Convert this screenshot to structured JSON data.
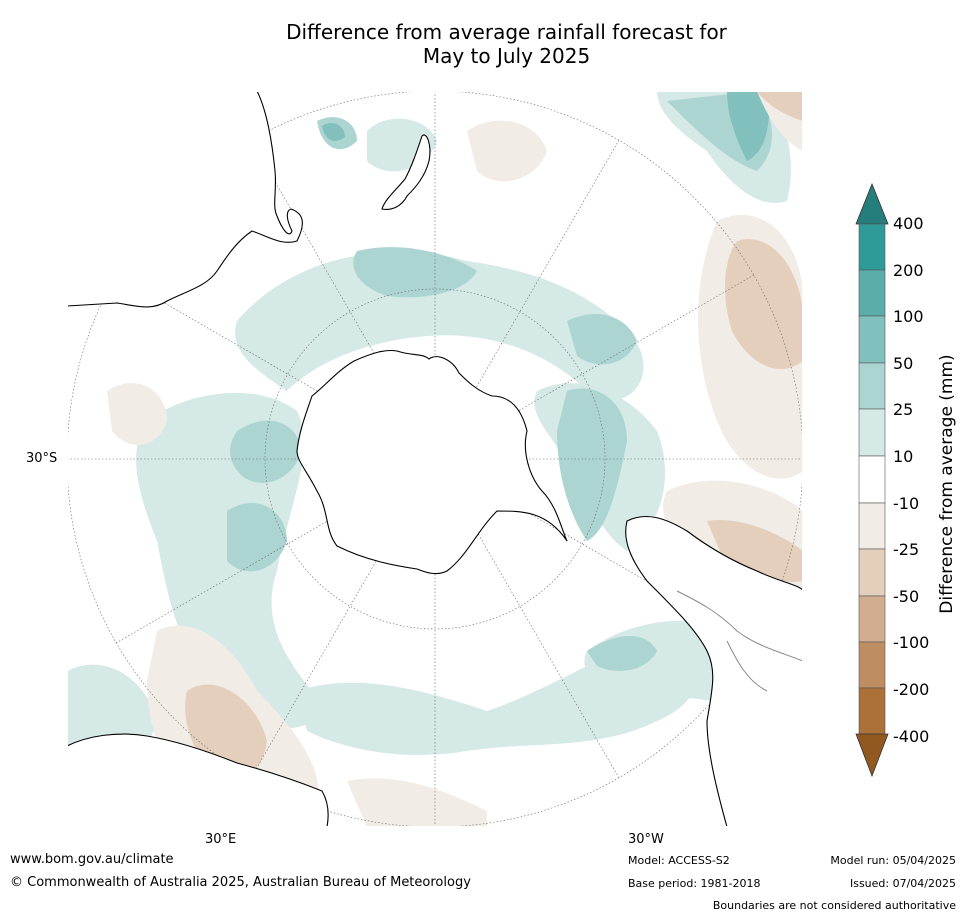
{
  "title_line1": "Difference from average rainfall forecast for",
  "title_line2": "May to July 2025",
  "map": {
    "lat_label": "30°S",
    "lon_label_east": "30°E",
    "lon_label_west": "30°W",
    "colors": {
      "ocean_bg": "#ffffff",
      "wet_25": "#d5e9e7",
      "wet_50": "#acd5d2",
      "wet_100": "#82c0bd",
      "dry_25": "#f2ece6",
      "dry_50": "#e3cfbc",
      "coast": "#000000"
    },
    "icons": [
      "antarctica-outline",
      "australia-coast",
      "new-zealand-coast",
      "south-america-coast",
      "africa-coast"
    ]
  },
  "colorbar": {
    "title": "Difference from average (mm)",
    "ticks": [
      "400",
      "200",
      "100",
      "50",
      "25",
      "10",
      "-10",
      "-25",
      "-50",
      "-100",
      "-200",
      "-400"
    ],
    "colors": [
      "#267e7c",
      "#2f9b98",
      "#5aadaa",
      "#82c0bd",
      "#acd5d2",
      "#d5e9e7",
      "#ffffff",
      "#f2ece6",
      "#e3cfbc",
      "#d1ae8f",
      "#be8e62",
      "#ac7139",
      "#915820"
    ]
  },
  "footer": {
    "website": "www.bom.gov.au/climate",
    "copyright": "© Commonwealth of Australia 2025, Australian Bureau of Meteorology",
    "model": "Model: ACCESS-S2",
    "base_period": "Base period: 1981-2018",
    "model_run": "Model run: 05/04/2025",
    "issued": "Issued: 07/04/2025",
    "disclaimer": "Boundaries are not considered authoritative"
  }
}
